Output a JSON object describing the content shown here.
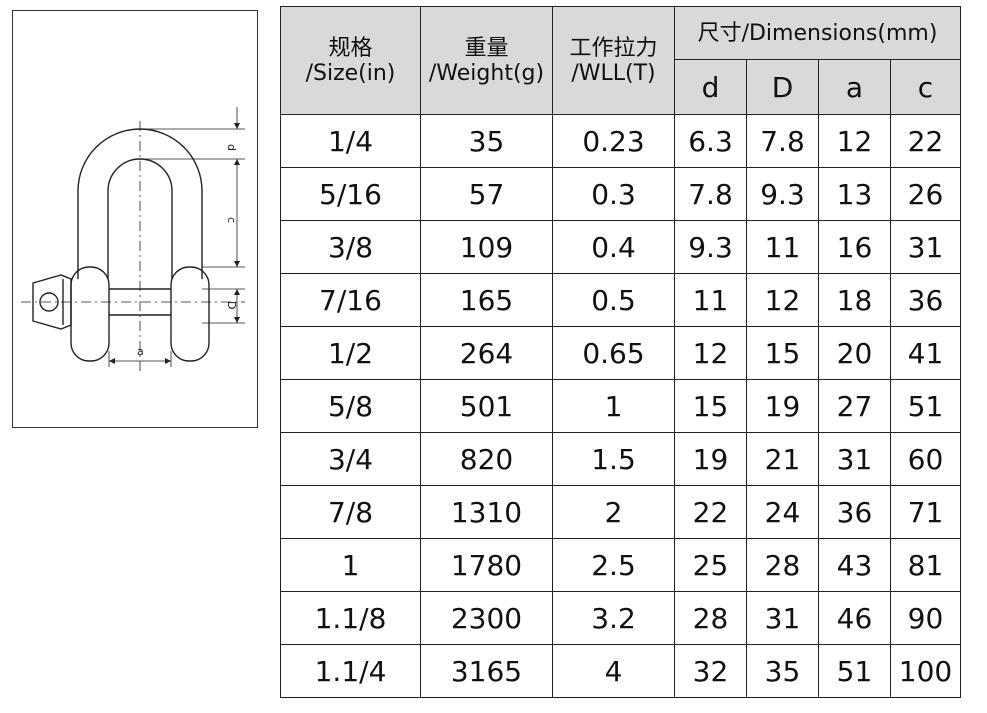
{
  "headers": {
    "size": {
      "zh": "规格",
      "en": "/Size(in)"
    },
    "weight": {
      "zh": "重量",
      "en": "/Weight(g)"
    },
    "wll": {
      "zh": "工作拉力",
      "en": "/WLL(T)"
    },
    "dimensions": "尺寸/Dimensions(mm)",
    "dim_cols": [
      "d",
      "D",
      "a",
      "c"
    ]
  },
  "rows": [
    {
      "size": "1/4",
      "weight": "35",
      "wll": "0.23",
      "d": "6.3",
      "D": "7.8",
      "a": "12",
      "c": "22"
    },
    {
      "size": "5/16",
      "weight": "57",
      "wll": "0.3",
      "d": "7.8",
      "D": "9.3",
      "a": "13",
      "c": "26"
    },
    {
      "size": "3/8",
      "weight": "109",
      "wll": "0.4",
      "d": "9.3",
      "D": "11",
      "a": "16",
      "c": "31"
    },
    {
      "size": "7/16",
      "weight": "165",
      "wll": "0.5",
      "d": "11",
      "D": "12",
      "a": "18",
      "c": "36"
    },
    {
      "size": "1/2",
      "weight": "264",
      "wll": "0.65",
      "d": "12",
      "D": "15",
      "a": "20",
      "c": "41"
    },
    {
      "size": "5/8",
      "weight": "501",
      "wll": "1",
      "d": "15",
      "D": "19",
      "a": "27",
      "c": "51"
    },
    {
      "size": "3/4",
      "weight": "820",
      "wll": "1.5",
      "d": "19",
      "D": "21",
      "a": "31",
      "c": "60"
    },
    {
      "size": "7/8",
      "weight": "1310",
      "wll": "2",
      "d": "22",
      "D": "24",
      "a": "36",
      "c": "71"
    },
    {
      "size": "1",
      "weight": "1780",
      "wll": "2.5",
      "d": "25",
      "D": "28",
      "a": "43",
      "c": "81"
    },
    {
      "size": "1.1/8",
      "weight": "2300",
      "wll": "3.2",
      "d": "28",
      "D": "31",
      "a": "46",
      "c": "90"
    },
    {
      "size": "1.1/4",
      "weight": "3165",
      "wll": "4",
      "d": "32",
      "D": "35",
      "a": "51",
      "c": "100"
    }
  ],
  "diagram": {
    "labels": {
      "d": "d",
      "c": "c",
      "D": "D",
      "a": "a"
    }
  }
}
